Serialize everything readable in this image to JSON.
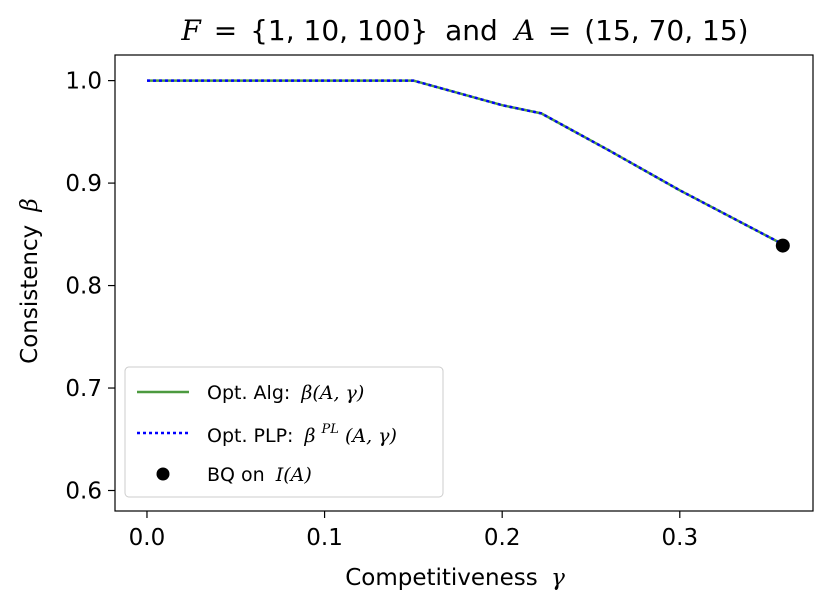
{
  "chart_data": {
    "type": "line",
    "title": {
      "F_symbol": "F",
      "eq": "=",
      "F_set": "{1, 10, 100}",
      "and": "and",
      "A_symbol": "A",
      "A_tuple": "(15, 70, 15)"
    },
    "xlabel": {
      "text": "Competitiveness",
      "symbol": "γ"
    },
    "ylabel": {
      "text": "Consistency",
      "symbol": "β"
    },
    "xlim": [
      -0.018,
      0.375
    ],
    "ylim": [
      0.58,
      1.025
    ],
    "xticks": [
      0.0,
      0.1,
      0.2,
      0.3
    ],
    "xtick_labels": [
      "0.0",
      "0.1",
      "0.2",
      "0.3"
    ],
    "yticks": [
      0.6,
      0.7,
      0.8,
      0.9,
      1.0
    ],
    "ytick_labels": [
      "0.6",
      "0.7",
      "0.8",
      "0.9",
      "1.0"
    ],
    "grid": false,
    "legend_position": "lower-left",
    "series": [
      {
        "name": "Opt. Alg: β(A, γ)",
        "style": "solid",
        "color": "#4c9a3f",
        "x": [
          0.0,
          0.05,
          0.1,
          0.15,
          0.2,
          0.222,
          0.26,
          0.3,
          0.355
        ],
        "y": [
          1.0,
          1.0,
          1.0,
          1.0,
          0.976,
          0.968,
          0.932,
          0.893,
          0.843
        ]
      },
      {
        "name": "Opt. PLP: β^PL(A, γ)",
        "style": "dotted",
        "color": "#0000ff",
        "x": [
          0.0,
          0.05,
          0.1,
          0.15,
          0.2,
          0.222,
          0.26,
          0.3,
          0.355
        ],
        "y": [
          1.0,
          1.0,
          1.0,
          1.0,
          0.976,
          0.968,
          0.932,
          0.893,
          0.843
        ]
      }
    ],
    "points": [
      {
        "name": "BQ on I(A)",
        "color": "#000000",
        "x": 0.358,
        "y": 0.839
      }
    ],
    "legend": [
      {
        "prefix": "Opt. Alg:",
        "math": "β(A, γ)",
        "kind": "line-solid",
        "color": "#4c9a3f"
      },
      {
        "prefix": "Opt. PLP:",
        "math_base": "β",
        "math_sup": "PL",
        "math_rest": "(A, γ)",
        "kind": "line-dotted",
        "color": "#0000ff"
      },
      {
        "prefix": "BQ on",
        "math": "I(A)",
        "kind": "marker",
        "color": "#000000"
      }
    ]
  }
}
